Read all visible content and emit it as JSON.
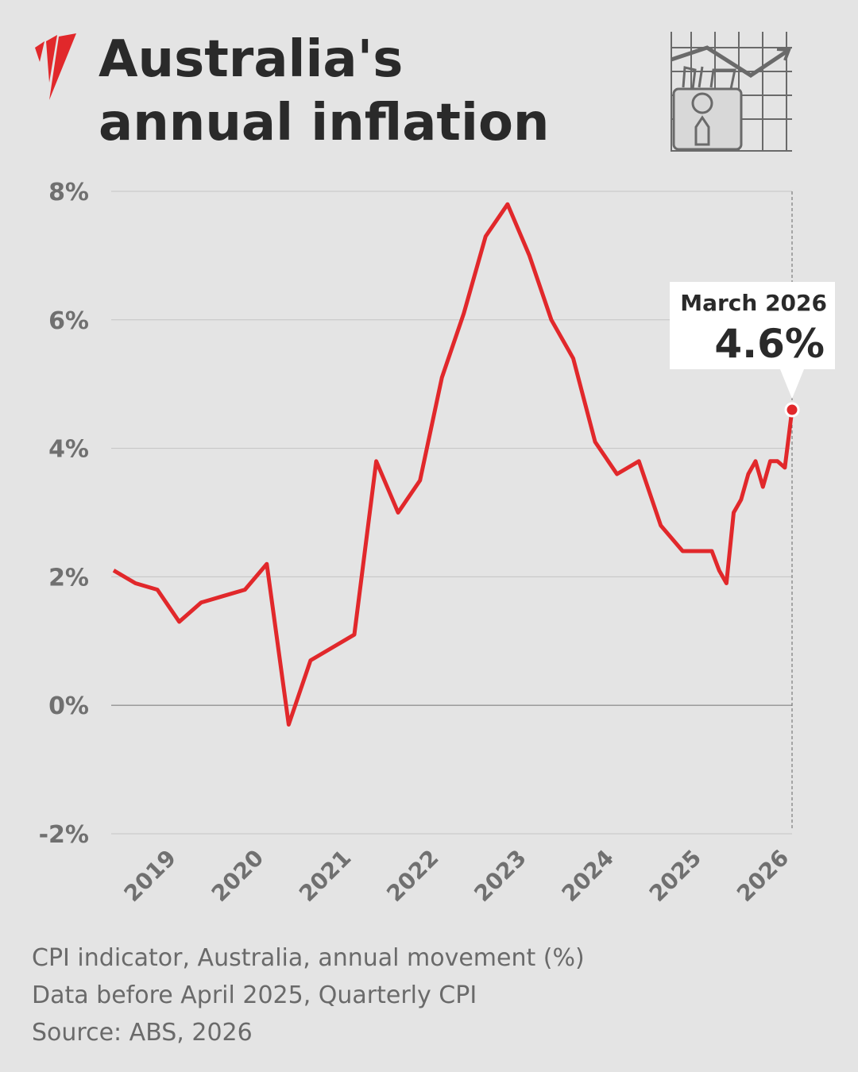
{
  "chart_data": {
    "type": "line",
    "title_lines": [
      "Australia's",
      "annual inflation"
    ],
    "x": [
      2018.5,
      2018.75,
      2019,
      2019.25,
      2019.5,
      2019.75,
      2020,
      2020.25,
      2020.5,
      2020.75,
      2021,
      2021.25,
      2021.5,
      2021.75,
      2022,
      2022.25,
      2022.5,
      2022.75,
      2023,
      2023.25,
      2023.5,
      2023.75,
      2024,
      2024.25,
      2024.5,
      2024.75,
      2025,
      2025.25,
      2025.333,
      2025.417,
      2025.5,
      2025.583,
      2025.667,
      2025.75,
      2025.833,
      2025.917,
      2026,
      2026.083,
      2026.167,
      2026.25
    ],
    "values": [
      2.1,
      1.9,
      1.8,
      1.3,
      1.6,
      1.7,
      1.8,
      2.2,
      -0.3,
      0.7,
      0.9,
      1.1,
      3.8,
      3.0,
      3.5,
      5.1,
      6.1,
      7.3,
      7.8,
      7.0,
      6.0,
      5.4,
      4.1,
      3.6,
      3.8,
      2.8,
      2.4,
      2.4,
      2.4,
      2.1,
      1.9,
      3.0,
      3.2,
      3.6,
      3.8,
      3.4,
      3.8,
      3.8,
      3.7,
      4.6
    ],
    "color": "#e1282b",
    "xlim": [
      2018.5,
      2026.25
    ],
    "xticks": [
      2019,
      2020,
      2021,
      2022,
      2023,
      2024,
      2025,
      2026
    ],
    "ylim": [
      -2,
      8
    ],
    "yticks": [
      {
        "value": -2,
        "label": "-2%"
      },
      {
        "value": 0,
        "label": "0%"
      },
      {
        "value": 2,
        "label": "2%"
      },
      {
        "value": 4,
        "label": "4%"
      },
      {
        "value": 6,
        "label": "6%"
      },
      {
        "value": 8,
        "label": "8%"
      }
    ],
    "grid": true,
    "annotation": {
      "title": "March 2026",
      "text": "4.6%"
    },
    "notes": [
      "CPI indicator, Australia, annual movement (%)",
      "Data before April 2025, Quarterly CPI",
      "Source: ABS, 2026"
    ]
  }
}
